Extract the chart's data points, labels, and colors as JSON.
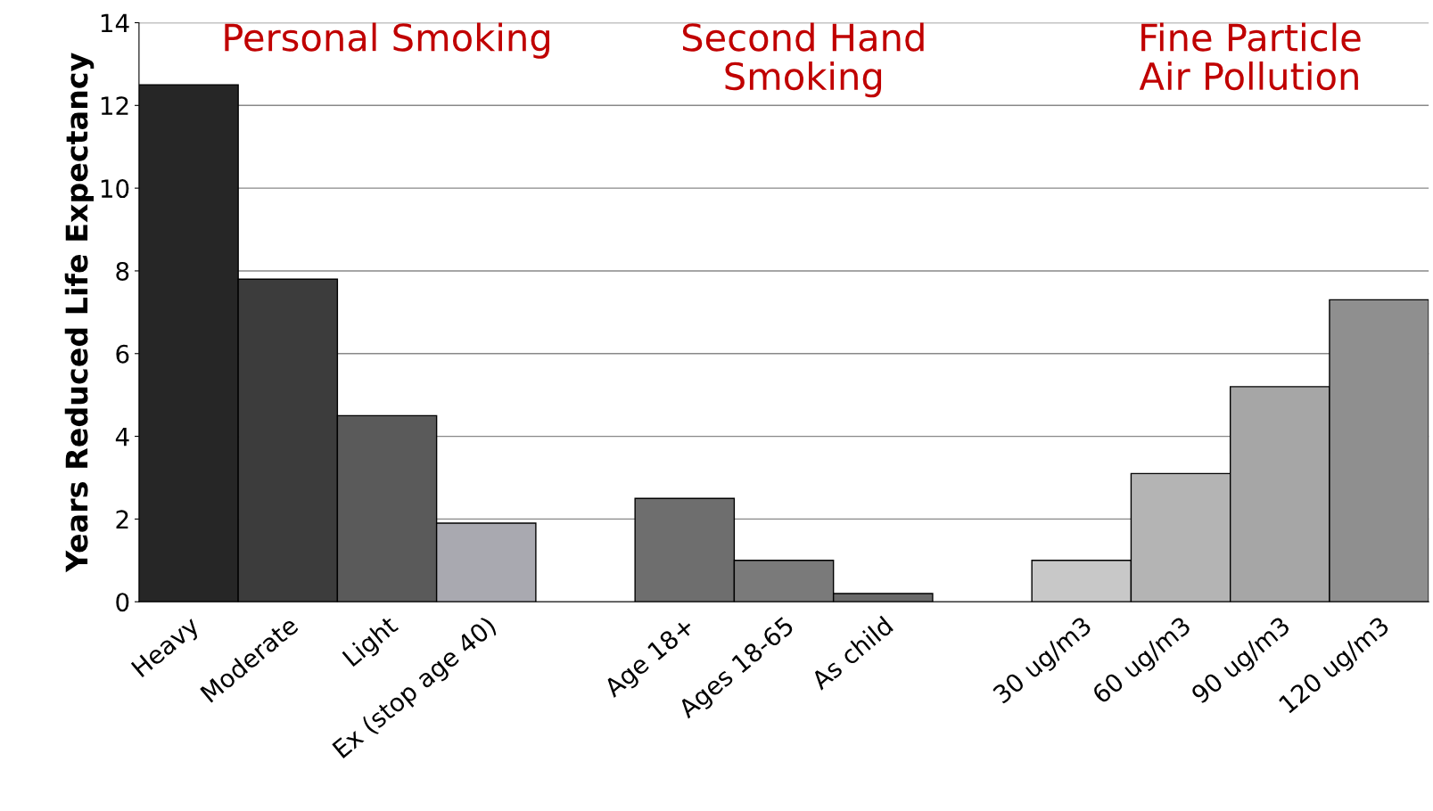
{
  "chart_data": {
    "type": "bar",
    "ylabel": "Years Reduced Life Expectancy",
    "categories": [
      "Heavy",
      "Moderate",
      "Light",
      "Ex (stop age 40)",
      null,
      "Age 18+",
      "Ages 18-65",
      "As child",
      null,
      "30 ug/m3",
      "60 ug/m3",
      "90 ug/m3",
      "120 ug/m3"
    ],
    "values": [
      12.5,
      7.8,
      4.5,
      1.9,
      null,
      2.5,
      1.0,
      0.2,
      null,
      1.0,
      3.1,
      5.2,
      7.3
    ],
    "colors": [
      "#262626",
      "#3c3c3c",
      "#5a5a5a",
      "#a9a9b0",
      "#ffffff",
      "#6e6e6e",
      "#7a7a7a",
      "#6a6a6a",
      "#ffffff",
      "#c8c8c8",
      "#b4b4b4",
      "#a6a6a6",
      "#8f8f8f"
    ],
    "ylim": [
      0,
      14
    ],
    "yticks": [
      0,
      2,
      4,
      6,
      8,
      10,
      12,
      14
    ],
    "grid": "y",
    "annotations": [
      "Personal Smoking",
      "Second Hand\nSmoking",
      "Fine Particle\nAir Pollution"
    ]
  }
}
